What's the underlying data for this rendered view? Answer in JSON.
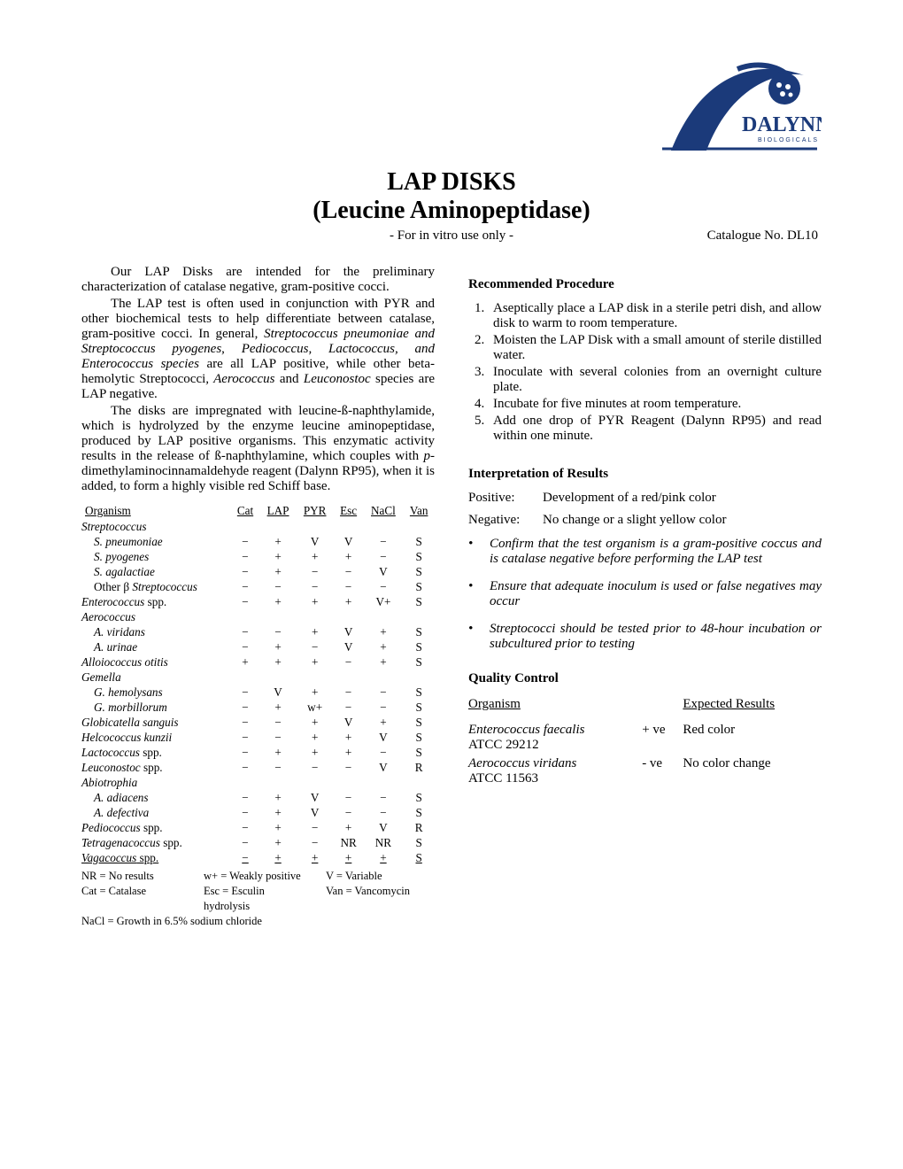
{
  "logo": {
    "brand_top": "DALYNN",
    "brand_sub": "BIOLOGICALS",
    "main_color": "#1b3a7a",
    "accent_color": "#000000"
  },
  "title": {
    "line1": "LAP DISKS",
    "line2": "(Leucine Aminopeptidase)",
    "use_note": "- For in vitro use only -",
    "catalogue": "Catalogue No. DL10"
  },
  "intro": {
    "p1": "Our LAP Disks are intended for the preliminary characterization of catalase negative, gram-positive cocci.",
    "p2_a": "The LAP test is often used in conjunction with PYR and other biochemical tests to help differentiate between catalase, gram-positive cocci. In general, ",
    "p2_b": "Streptococcus pneumoniae and Streptococcus pyogenes",
    "p2_c": ", ",
    "p2_d": "Pediococcus, Lactococcus, and Enterococcus species",
    "p2_e": " are all LAP positive, while other beta-hemolytic Streptococci",
    "p2_f": ", Aerococcus",
    "p2_g": " and ",
    "p2_h": "Leuconostoc",
    "p2_i": " species are LAP negative",
    "p2_j": ".",
    "p3_a": "The disks are impregnated with leucine-ß-naphthylamide, which is hydrolyzed by the enzyme leucine aminopeptidase, produced by LAP positive organisms. This enzymatic activity results in the release of ß-naphthylamine, which couples with ",
    "p3_b": "p",
    "p3_c": "-dimethylaminocinnamaldehyde reagent (Dalynn RP95), when it is added, to form a highly visible red Schiff base."
  },
  "org_table": {
    "columns": [
      "Organism",
      "Cat",
      "LAP",
      "PYR",
      "Esc",
      "NaCl",
      "Van"
    ],
    "rows": [
      {
        "name": "Streptococcus",
        "italic": true,
        "indent": 0,
        "vals": [
          "",
          "",
          "",
          "",
          "",
          ""
        ]
      },
      {
        "name": "S. pneumoniae",
        "italic": true,
        "indent": 1,
        "vals": [
          "−",
          "+",
          "V",
          "V",
          "−",
          "S"
        ]
      },
      {
        "name": "S. pyogenes",
        "italic": true,
        "indent": 1,
        "vals": [
          "−",
          "+",
          "+",
          "+",
          "−",
          "S"
        ]
      },
      {
        "name": "S. agalactiae",
        "italic": true,
        "indent": 1,
        "vals": [
          "−",
          "+",
          "−",
          "−",
          "V",
          "S"
        ]
      },
      {
        "name": "Other β Streptococcus",
        "italic": false,
        "indent": 1,
        "italic_part": "Streptococcus",
        "vals": [
          "−",
          "−",
          "−",
          "−",
          "−",
          "S"
        ]
      },
      {
        "name": "Enterococcus spp.",
        "italic": true,
        "indent": 0,
        "plain_suffix": " spp.",
        "vals": [
          "−",
          "+",
          "+",
          "+",
          "V+",
          "S"
        ]
      },
      {
        "name": "Aerococcus",
        "italic": true,
        "indent": 0,
        "vals": [
          "",
          "",
          "",
          "",
          "",
          ""
        ]
      },
      {
        "name": "A. viridans",
        "italic": true,
        "indent": 1,
        "vals": [
          "−",
          "−",
          "+",
          "V",
          "+",
          "S"
        ]
      },
      {
        "name": "A. urinae",
        "italic": true,
        "indent": 1,
        "vals": [
          "−",
          "+",
          "−",
          "V",
          "+",
          "S"
        ]
      },
      {
        "name": "Alloiococcus otitis",
        "italic": true,
        "indent": 0,
        "vals": [
          "+",
          "+",
          "+",
          "−",
          "+",
          "S"
        ]
      },
      {
        "name": "Gemella",
        "italic": true,
        "indent": 0,
        "vals": [
          "",
          "",
          "",
          "",
          "",
          ""
        ]
      },
      {
        "name": "G. hemolysans",
        "italic": true,
        "indent": 1,
        "vals": [
          "−",
          "V",
          "+",
          "−",
          "−",
          "S"
        ]
      },
      {
        "name": "G. morbillorum",
        "italic": true,
        "indent": 1,
        "vals": [
          "−",
          "+",
          "w+",
          "−",
          "−",
          "S"
        ]
      },
      {
        "name": "Globicatella sanguis",
        "italic": true,
        "indent": 0,
        "vals": [
          "−",
          "−",
          "+",
          "V",
          "+",
          "S"
        ]
      },
      {
        "name": "Helcococcus kunzii",
        "italic": true,
        "indent": 0,
        "vals": [
          "−",
          "−",
          "+",
          "+",
          "V",
          "S"
        ]
      },
      {
        "name": "Lactococcus spp.",
        "italic": true,
        "indent": 0,
        "plain_suffix": " spp.",
        "vals": [
          "−",
          "+",
          "+",
          "+",
          "−",
          "S"
        ]
      },
      {
        "name": "Leuconostoc spp.",
        "italic": true,
        "indent": 0,
        "plain_suffix": " spp.",
        "vals": [
          "−",
          "−",
          "−",
          "−",
          "V",
          "R"
        ]
      },
      {
        "name": "Abiotrophia",
        "italic": true,
        "indent": 0,
        "vals": [
          "",
          "",
          "",
          "",
          "",
          ""
        ]
      },
      {
        "name": "A. adiacens",
        "italic": true,
        "indent": 1,
        "vals": [
          "−",
          "+",
          "V",
          "−",
          "−",
          "S"
        ]
      },
      {
        "name": "A. defectiva",
        "italic": true,
        "indent": 1,
        "vals": [
          "−",
          "+",
          "V",
          "−",
          "−",
          "S"
        ]
      },
      {
        "name": "Pediococcus spp.",
        "italic": true,
        "indent": 0,
        "plain_suffix": " spp.",
        "vals": [
          "−",
          "+",
          "−",
          "+",
          "V",
          "R"
        ]
      },
      {
        "name": "Tetragenacoccus spp.",
        "italic": true,
        "indent": 0,
        "plain_suffix": " spp.",
        "vals": [
          "−",
          "+",
          "−",
          "NR",
          "NR",
          "S"
        ]
      },
      {
        "name": "Vagacoccus spp.",
        "italic": true,
        "indent": 0,
        "plain_suffix": " spp.",
        "underline": true,
        "vals": [
          "−",
          "+",
          "+",
          "+",
          "+",
          "S"
        ]
      }
    ],
    "legend": {
      "r1": [
        "NR = No results",
        "w+ = Weakly positive",
        "V = Variable"
      ],
      "r2": [
        "Cat = Catalase",
        "Esc = Esculin hydrolysis",
        "Van = Vancomycin"
      ],
      "r3": [
        "NaCl = Growth in 6.5% sodium chloride"
      ]
    }
  },
  "procedure": {
    "heading": "Recommended Procedure",
    "items": [
      "Aseptically place a LAP disk in a sterile petri dish, and allow disk to warm to room temperature.",
      "Moisten the LAP Disk with a small amount of sterile distilled water.",
      "Inoculate with several colonies from an overnight culture plate.",
      "Incubate for five minutes at room temperature.",
      "Add one drop of PYR Reagent (Dalynn RP95) and read within one minute."
    ]
  },
  "interpretation": {
    "heading": "Interpretation of Results",
    "positive_label": "Positive:",
    "positive_text": "Development of a red/pink color",
    "negative_label": "Negative:",
    "negative_text": "No change or a slight yellow color",
    "notes": [
      "Confirm that the test organism is a gram-positive coccus and is catalase negative before performing the LAP test",
      "Ensure that adequate inoculum is used or false negatives may occur",
      "Streptococci should be tested prior to 48-hour incubation or subcultured prior to testing"
    ]
  },
  "qc": {
    "heading": "Quality Control",
    "columns": [
      "Organism",
      "",
      "Expected Results"
    ],
    "rows": [
      {
        "org": "Enterococcus faecalis",
        "atcc": "ATCC 29212",
        "sign": "+ ve",
        "result": "Red color"
      },
      {
        "org": "Aerococcus viridans",
        "atcc": "ATCC 11563",
        "sign": "- ve",
        "result": "No color change"
      }
    ]
  }
}
